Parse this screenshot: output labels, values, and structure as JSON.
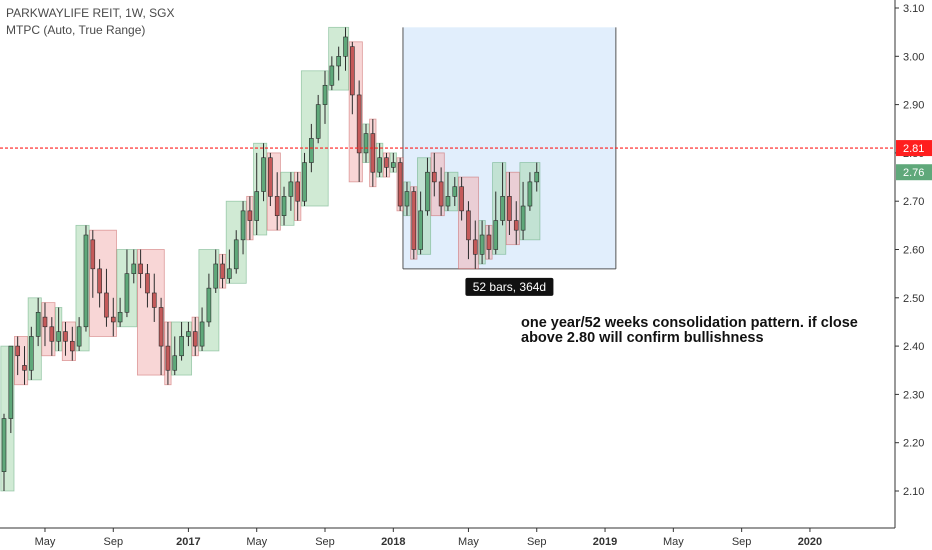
{
  "header": {
    "title": "PARKWAYLIFE REIT, 1W, SGX",
    "indicator": "MTPC (Auto, True Range)"
  },
  "chart_data": {
    "type": "candlestick",
    "ylim": [
      2.02,
      3.12
    ],
    "y_ticks": [
      "3.10",
      "3.00",
      "2.90",
      "2.80",
      "2.70",
      "2.60",
      "2.50",
      "2.40",
      "2.30",
      "2.20",
      "2.10"
    ],
    "x_ticks": [
      {
        "label": "May",
        "bold": false,
        "idx": 6
      },
      {
        "label": "Sep",
        "bold": false,
        "idx": 16
      },
      {
        "label": "2017",
        "bold": true,
        "idx": 27
      },
      {
        "label": "May",
        "bold": false,
        "idx": 37
      },
      {
        "label": "Sep",
        "bold": false,
        "idx": 47
      },
      {
        "label": "2018",
        "bold": true,
        "idx": 57
      },
      {
        "label": "May",
        "bold": false,
        "idx": 68
      },
      {
        "label": "Sep",
        "bold": false,
        "idx": 78
      },
      {
        "label": "2019",
        "bold": true,
        "idx": 88
      },
      {
        "label": "May",
        "bold": false,
        "idx": 98
      },
      {
        "label": "Sep",
        "bold": false,
        "idx": 108
      },
      {
        "label": "2020",
        "bold": true,
        "idx": 118
      }
    ],
    "reference_line": {
      "value": 2.81,
      "label": "2.81",
      "color": "#ff1e1e"
    },
    "last_price": {
      "value": 2.76,
      "label": "2.76",
      "color": "#5fa87a"
    },
    "range_box": {
      "from_idx": 59,
      "to_idx": 89,
      "top": 3.06,
      "bottom": 2.56,
      "label": "52 bars, 364d"
    },
    "candles": [
      [
        2.14,
        2.25,
        2.1,
        2.26
      ],
      [
        2.25,
        2.4,
        2.22,
        2.4
      ],
      [
        2.4,
        2.38,
        2.34,
        2.42
      ],
      [
        2.36,
        2.35,
        2.32,
        2.4
      ],
      [
        2.35,
        2.42,
        2.33,
        2.44
      ],
      [
        2.42,
        2.47,
        2.4,
        2.5
      ],
      [
        2.46,
        2.44,
        2.4,
        2.49
      ],
      [
        2.44,
        2.41,
        2.38,
        2.46
      ],
      [
        2.41,
        2.43,
        2.39,
        2.48
      ],
      [
        2.43,
        2.41,
        2.38,
        2.45
      ],
      [
        2.41,
        2.39,
        2.37,
        2.44
      ],
      [
        2.4,
        2.44,
        2.39,
        2.46
      ],
      [
        2.44,
        2.63,
        2.43,
        2.65
      ],
      [
        2.62,
        2.56,
        2.5,
        2.64
      ],
      [
        2.56,
        2.51,
        2.48,
        2.58
      ],
      [
        2.51,
        2.46,
        2.44,
        2.56
      ],
      [
        2.46,
        2.45,
        2.42,
        2.5
      ],
      [
        2.45,
        2.47,
        2.44,
        2.5
      ],
      [
        2.47,
        2.55,
        2.46,
        2.6
      ],
      [
        2.55,
        2.57,
        2.53,
        2.6
      ],
      [
        2.57,
        2.55,
        2.52,
        2.6
      ],
      [
        2.55,
        2.51,
        2.48,
        2.57
      ],
      [
        2.51,
        2.48,
        2.45,
        2.55
      ],
      [
        2.48,
        2.4,
        2.34,
        2.5
      ],
      [
        2.4,
        2.35,
        2.32,
        2.45
      ],
      [
        2.35,
        2.38,
        2.34,
        2.42
      ],
      [
        2.38,
        2.42,
        2.37,
        2.45
      ],
      [
        2.42,
        2.43,
        2.4,
        2.45
      ],
      [
        2.43,
        2.4,
        2.38,
        2.46
      ],
      [
        2.4,
        2.45,
        2.39,
        2.48
      ],
      [
        2.45,
        2.52,
        2.44,
        2.55
      ],
      [
        2.52,
        2.57,
        2.51,
        2.6
      ],
      [
        2.57,
        2.54,
        2.52,
        2.59
      ],
      [
        2.54,
        2.56,
        2.53,
        2.6
      ],
      [
        2.56,
        2.62,
        2.55,
        2.64
      ],
      [
        2.62,
        2.68,
        2.59,
        2.7
      ],
      [
        2.68,
        2.66,
        2.62,
        2.71
      ],
      [
        2.66,
        2.72,
        2.63,
        2.8
      ],
      [
        2.72,
        2.79,
        2.7,
        2.82
      ],
      [
        2.79,
        2.71,
        2.69,
        2.8
      ],
      [
        2.71,
        2.67,
        2.64,
        2.76
      ],
      [
        2.67,
        2.71,
        2.65,
        2.73
      ],
      [
        2.71,
        2.74,
        2.68,
        2.76
      ],
      [
        2.74,
        2.7,
        2.66,
        2.76
      ],
      [
        2.7,
        2.78,
        2.69,
        2.8
      ],
      [
        2.78,
        2.83,
        2.76,
        2.86
      ],
      [
        2.83,
        2.9,
        2.82,
        2.92
      ],
      [
        2.9,
        2.94,
        2.86,
        2.97
      ],
      [
        2.94,
        2.98,
        2.93,
        3.0
      ],
      [
        2.98,
        3.0,
        2.95,
        3.02
      ],
      [
        3.0,
        3.04,
        2.97,
        3.06
      ],
      [
        3.02,
        2.92,
        2.88,
        3.03
      ],
      [
        2.92,
        2.8,
        2.74,
        2.95
      ],
      [
        2.8,
        2.84,
        2.78,
        2.86
      ],
      [
        2.84,
        2.76,
        2.73,
        2.87
      ],
      [
        2.76,
        2.79,
        2.75,
        2.82
      ],
      [
        2.79,
        2.77,
        2.75,
        2.8
      ],
      [
        2.77,
        2.78,
        2.76,
        2.8
      ],
      [
        2.78,
        2.69,
        2.68,
        2.79
      ],
      [
        2.69,
        2.72,
        2.67,
        2.74
      ],
      [
        2.72,
        2.6,
        2.58,
        2.73
      ],
      [
        2.6,
        2.68,
        2.59,
        2.72
      ],
      [
        2.68,
        2.76,
        2.67,
        2.79
      ],
      [
        2.76,
        2.74,
        2.71,
        2.8
      ],
      [
        2.74,
        2.69,
        2.67,
        2.77
      ],
      [
        2.69,
        2.71,
        2.68,
        2.76
      ],
      [
        2.71,
        2.73,
        2.69,
        2.75
      ],
      [
        2.73,
        2.68,
        2.66,
        2.75
      ],
      [
        2.68,
        2.62,
        2.58,
        2.7
      ],
      [
        2.62,
        2.59,
        2.56,
        2.66
      ],
      [
        2.59,
        2.63,
        2.57,
        2.66
      ],
      [
        2.63,
        2.6,
        2.58,
        2.65
      ],
      [
        2.6,
        2.66,
        2.59,
        2.72
      ],
      [
        2.66,
        2.71,
        2.65,
        2.78
      ],
      [
        2.71,
        2.66,
        2.63,
        2.76
      ],
      [
        2.66,
        2.64,
        2.61,
        2.7
      ],
      [
        2.64,
        2.69,
        2.62,
        2.74
      ],
      [
        2.69,
        2.74,
        2.68,
        2.76
      ],
      [
        2.74,
        2.76,
        2.72,
        2.78
      ]
    ]
  },
  "annotation": {
    "text": "one year/52 weeks consolidation pattern. if close above 2.80 will confirm bullishness"
  },
  "colors": {
    "up": "#5fa87a",
    "down": "#c45a5a",
    "up_box": "#a9d8b0",
    "down_box": "#f2b5b5",
    "range_fill": "#dcebfc",
    "axis": "#333333"
  }
}
